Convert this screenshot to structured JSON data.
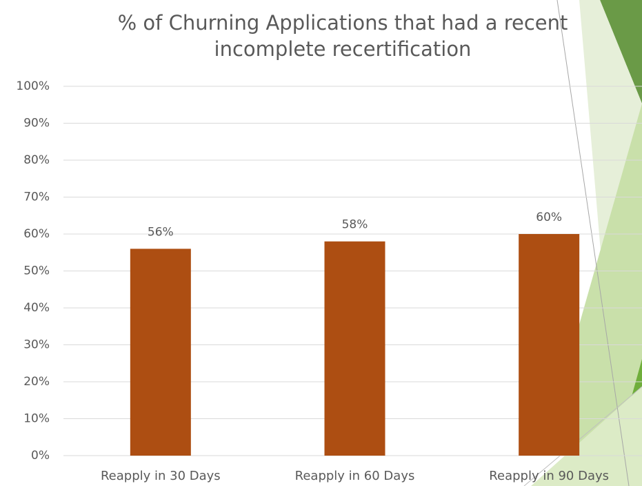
{
  "chart_data": {
    "type": "bar",
    "title": "% of Churning Applications that had a recent\nincomplete recertification",
    "categories": [
      "Reapply in 30 Days",
      "Reapply in 60 Days",
      "Reapply in 90 Days"
    ],
    "values": [
      56,
      58,
      60
    ],
    "value_labels": [
      "56%",
      "58%",
      "60%"
    ],
    "color": "#ad4e12",
    "ylim": [
      0,
      100
    ],
    "yticks": [
      {
        "value": 0,
        "label": "0%"
      },
      {
        "value": 10,
        "label": "10%"
      },
      {
        "value": 20,
        "label": "20%"
      },
      {
        "value": 30,
        "label": "30%"
      },
      {
        "value": 40,
        "label": "40%"
      },
      {
        "value": 50,
        "label": "50%"
      },
      {
        "value": 60,
        "label": "60%"
      },
      {
        "value": 70,
        "label": "70%"
      },
      {
        "value": 80,
        "label": "80%"
      },
      {
        "value": 90,
        "label": "90%"
      },
      {
        "value": 100,
        "label": "100%"
      }
    ],
    "grid": true
  }
}
